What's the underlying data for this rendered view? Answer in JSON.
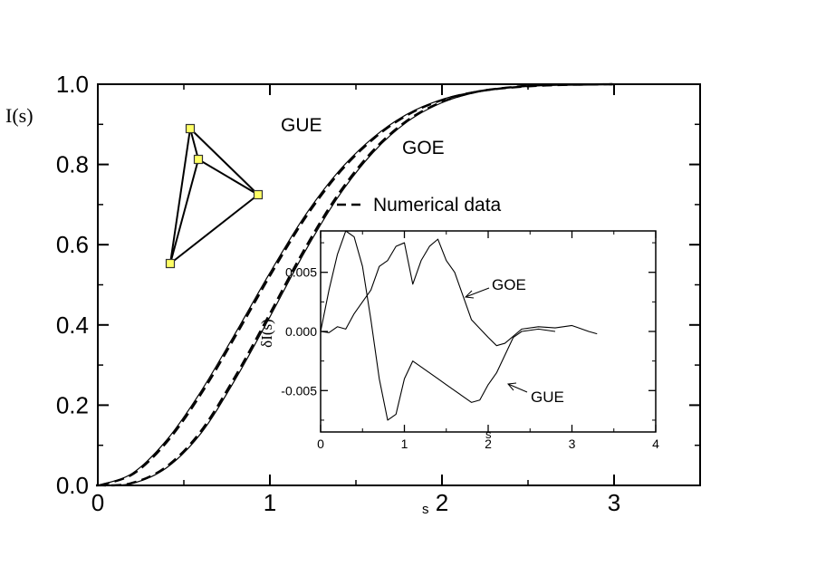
{
  "chart_data": [
    {
      "type": "line",
      "ylabel": "I(s)",
      "xlabel": "s",
      "xlim": [
        0,
        3.5
      ],
      "ylim": [
        0,
        1
      ],
      "xticks": [
        "0",
        "1",
        "2",
        "3"
      ],
      "yticks": [
        "0.0",
        "0.2",
        "0.4",
        "0.6",
        "0.8",
        "1.0"
      ],
      "annotations": [
        "GUE",
        "GOE"
      ],
      "legend": [
        {
          "label": "Numerical data",
          "style": "dashed"
        }
      ],
      "series": [
        {
          "name": "GUE",
          "x": [
            0,
            0.2,
            0.4,
            0.6,
            0.8,
            1.0,
            1.2,
            1.4,
            1.6,
            1.8,
            2.0,
            2.2,
            2.4,
            2.6,
            2.8,
            3.0
          ],
          "y": [
            0,
            0.005,
            0.044,
            0.13,
            0.265,
            0.42,
            0.58,
            0.721,
            0.83,
            0.907,
            0.954,
            0.98,
            0.992,
            0.998,
            0.999,
            1.0
          ]
        },
        {
          "name": "GOE",
          "x": [
            0,
            0.2,
            0.4,
            0.6,
            0.8,
            1.0,
            1.2,
            1.4,
            1.6,
            1.8,
            2.0,
            2.2,
            2.4,
            2.6,
            2.8,
            3.0
          ],
          "y": [
            0,
            0.03,
            0.113,
            0.235,
            0.38,
            0.53,
            0.67,
            0.783,
            0.867,
            0.926,
            0.962,
            0.982,
            0.992,
            0.997,
            0.999,
            1.0
          ]
        }
      ]
    },
    {
      "type": "line",
      "ylabel": "δI(s)",
      "xlabel": "s",
      "xlim": [
        0,
        4
      ],
      "ylim": [
        -0.0085,
        0.0085
      ],
      "xticks": [
        "0",
        "1",
        "2",
        "3",
        "4"
      ],
      "yticks": [
        "-0.005",
        "0.000",
        "0.005"
      ],
      "annotations": [
        "GOE",
        "GUE"
      ],
      "series": [
        {
          "name": "GOE",
          "x": [
            0,
            0.1,
            0.2,
            0.3,
            0.4,
            0.5,
            0.6,
            0.7,
            0.8,
            0.9,
            1.0,
            1.1,
            1.2,
            1.3,
            1.4,
            1.5,
            1.6,
            1.8,
            2.0,
            2.1,
            2.2,
            2.4,
            2.6,
            2.8,
            3.0,
            3.2,
            3.3
          ],
          "y": [
            0,
            -0.0001,
            0.0004,
            0.0002,
            0.0015,
            0.0025,
            0.0035,
            0.0055,
            0.006,
            0.0072,
            0.0075,
            0.004,
            0.006,
            0.0072,
            0.0078,
            0.006,
            0.005,
            0.001,
            -0.0005,
            -0.0012,
            -0.001,
            0.0002,
            0.0004,
            0.0003,
            0.0005,
            0.0,
            -0.0002
          ]
        },
        {
          "name": "GUE",
          "x": [
            0,
            0.1,
            0.2,
            0.3,
            0.4,
            0.5,
            0.6,
            0.7,
            0.8,
            0.9,
            1.0,
            1.1,
            1.2,
            1.3,
            1.4,
            1.5,
            1.6,
            1.7,
            1.8,
            1.9,
            2.0,
            2.1,
            2.2,
            2.3,
            2.4,
            2.6,
            2.8
          ],
          "y": [
            0,
            0.0035,
            0.0065,
            0.0085,
            0.008,
            0.0055,
            0.001,
            -0.004,
            -0.0075,
            -0.007,
            -0.004,
            -0.0025,
            -0.003,
            -0.0035,
            -0.004,
            -0.0045,
            -0.005,
            -0.0055,
            -0.006,
            -0.0058,
            -0.0045,
            -0.0035,
            -0.002,
            -0.0005,
            0.0,
            0.0002,
            0.0
          ]
        }
      ]
    }
  ],
  "tetrahedron_colors": {
    "edge": "#000000",
    "node_fill": "#ffff66",
    "node_stroke": "#333333"
  }
}
